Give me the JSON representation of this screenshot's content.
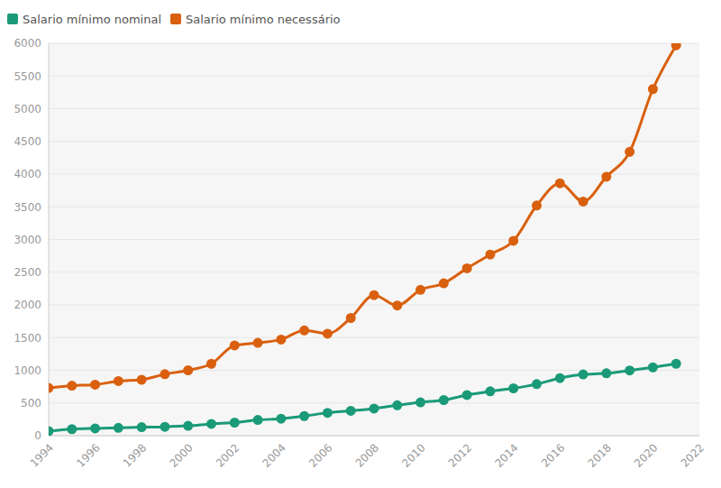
{
  "chart_data": {
    "type": "line",
    "legend": "top-left",
    "grid": true,
    "x": [
      1994,
      1995,
      1996,
      1997,
      1998,
      1999,
      2000,
      2001,
      2002,
      2003,
      2004,
      2005,
      2006,
      2007,
      2008,
      2009,
      2010,
      2011,
      2012,
      2013,
      2014,
      2015,
      2016,
      2017,
      2018,
      2019,
      2020,
      2021
    ],
    "xlim": [
      1994,
      2022
    ],
    "xticks": [
      1994,
      1996,
      1998,
      2000,
      2002,
      2004,
      2006,
      2008,
      2010,
      2012,
      2014,
      2016,
      2018,
      2020,
      2022
    ],
    "ylim": [
      0,
      6000
    ],
    "yticks": [
      0,
      500,
      1000,
      1500,
      2000,
      2500,
      3000,
      3500,
      4000,
      4500,
      5000,
      5500,
      6000
    ],
    "series": [
      {
        "name": "Salario mínimo nominal",
        "color": "#1a9a78",
        "marker": "circle",
        "values": [
          70,
          100,
          112,
          120,
          130,
          136,
          151,
          180,
          200,
          240,
          260,
          300,
          350,
          380,
          415,
          465,
          510,
          545,
          622,
          678,
          724,
          788,
          880,
          937,
          954,
          998,
          1045,
          1100
        ]
      },
      {
        "name": "Salario mínimo necessário",
        "color": "#d9600f",
        "marker": "circle",
        "values": [
          730,
          765,
          780,
          835,
          855,
          940,
          1000,
          1100,
          1380,
          1420,
          1470,
          1610,
          1560,
          1800,
          2150,
          1990,
          2230,
          2330,
          2560,
          2770,
          2980,
          3520,
          3860,
          3580,
          3960,
          4340,
          5300,
          5970
        ]
      }
    ]
  }
}
